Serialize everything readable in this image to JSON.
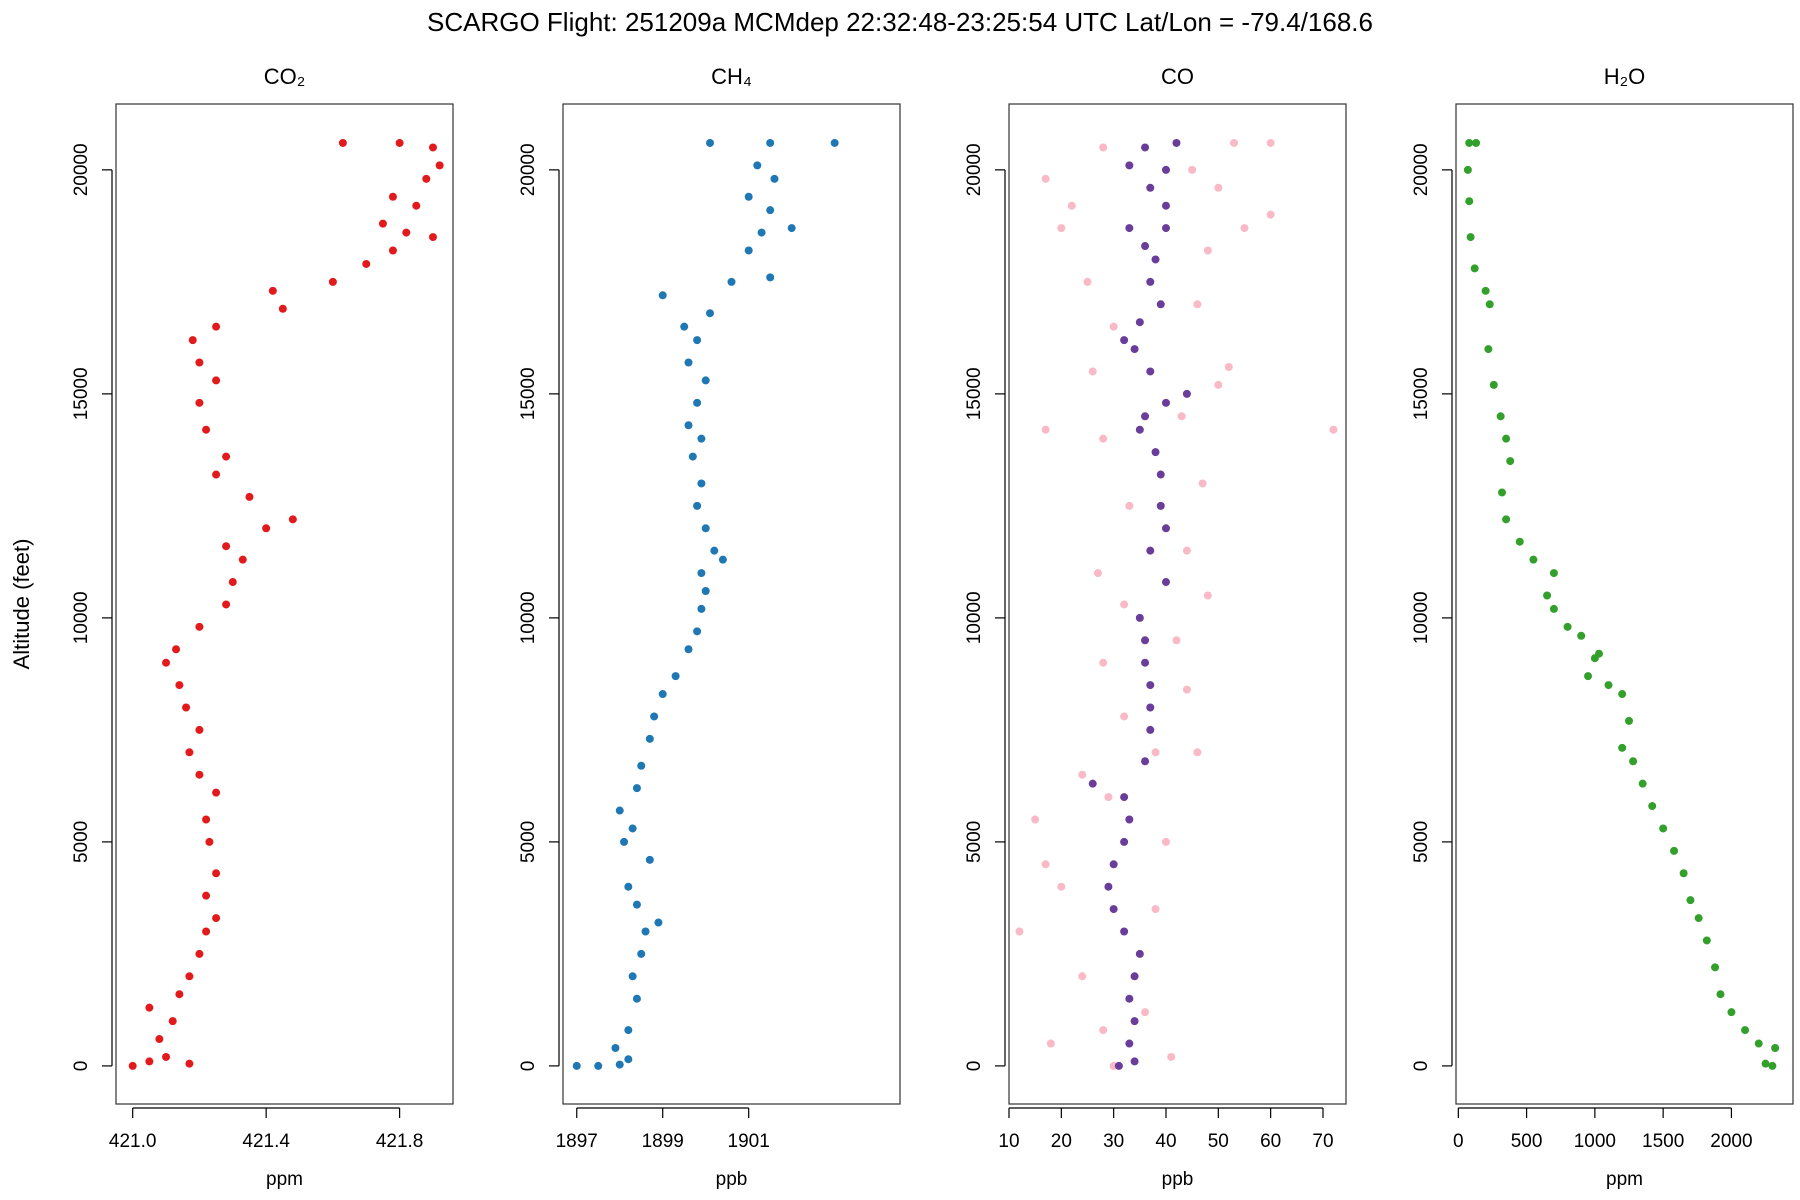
{
  "title": "SCARGO Flight: 251209a  MCMdep  22:32:48-23:25:54 UTC  Lat/Lon = -79.4/168.6",
  "chart_data": [
    {
      "type": "scatter",
      "title": "CO₂",
      "xlabel": "ppm",
      "ylabel": "Altitude (feet)",
      "xlim": [
        420.95,
        421.96
      ],
      "xticks": [
        {
          "value": 421,
          "label": "421.0"
        },
        421.4,
        421.8
      ],
      "ylim": [
        -850,
        21470
      ],
      "yticks": [
        0,
        5000,
        10000,
        15000,
        20000
      ],
      "series": [
        {
          "color": "#e31a1c",
          "x": [
            421.0,
            421.05,
            421.1,
            421.17,
            421.08,
            421.05,
            421.12,
            421.14,
            421.17,
            421.2,
            421.22,
            421.25,
            421.22,
            421.25,
            421.23,
            421.22,
            421.25,
            421.2,
            421.17,
            421.2,
            421.16,
            421.14,
            421.1,
            421.13,
            421.2,
            421.28,
            421.3,
            421.33,
            421.28,
            421.4,
            421.48,
            421.35,
            421.25,
            421.28,
            421.22,
            421.2,
            421.25,
            421.2,
            421.18,
            421.25,
            421.45,
            421.42,
            421.6,
            421.7,
            421.78,
            421.82,
            421.9,
            421.75,
            421.85,
            421.78,
            421.88,
            421.92,
            421.63,
            421.8,
            421.9
          ],
          "y": [
            0,
            100,
            200,
            50,
            600,
            1300,
            1000,
            1600,
            2000,
            2500,
            3000,
            3300,
            3800,
            4300,
            5000,
            5500,
            6100,
            6500,
            7000,
            7500,
            8000,
            8500,
            9000,
            9300,
            9800,
            10300,
            10800,
            11300,
            11600,
            12000,
            12200,
            12700,
            13200,
            13600,
            14200,
            14800,
            15300,
            15700,
            16200,
            16500,
            16900,
            17300,
            17500,
            17900,
            18200,
            18600,
            18500,
            18800,
            19200,
            19400,
            19800,
            20100,
            20600,
            20600,
            20500
          ]
        }
      ]
    },
    {
      "type": "scatter",
      "title": "CH₄",
      "xlabel": "ppb",
      "xlim": [
        1896.68,
        1904.52
      ],
      "xticks": [
        1897,
        1899,
        1901
      ],
      "ylim": [
        -850,
        21470
      ],
      "yticks": [
        0,
        5000,
        10000,
        15000,
        20000
      ],
      "series": [
        {
          "color": "#1f78b4",
          "x": [
            1897,
            1897.5,
            1898,
            1898.2,
            1897.9,
            1898.2,
            1898.4,
            1898.3,
            1898.5,
            1898.6,
            1898.9,
            1898.4,
            1898.2,
            1898.7,
            1898.1,
            1898.3,
            1898.0,
            1898.4,
            1898.5,
            1898.7,
            1898.8,
            1899,
            1899.3,
            1899.6,
            1899.8,
            1899.9,
            1900,
            1899.9,
            1900.2,
            1900.4,
            1900,
            1899.8,
            1899.9,
            1899.7,
            1899.9,
            1899.6,
            1899.8,
            1900,
            1899.6,
            1899.8,
            1899.5,
            1900.1,
            1899,
            1900.6,
            1901.5,
            1901.0,
            1901.3,
            1902.0,
            1901.5,
            1901.0,
            1901.6,
            1901.2,
            1900.1,
            1901.5,
            1903
          ],
          "y": [
            0,
            0,
            30,
            150,
            400,
            800,
            1500,
            2000,
            2500,
            3000,
            3200,
            3600,
            4000,
            4600,
            5000,
            5300,
            5700,
            6200,
            6700,
            7300,
            7800,
            8300,
            8700,
            9300,
            9700,
            10200,
            10600,
            11000,
            11500,
            11300,
            12000,
            12500,
            13000,
            13600,
            14000,
            14300,
            14800,
            15300,
            15700,
            16200,
            16500,
            16800,
            17200,
            17500,
            17600,
            18200,
            18600,
            18700,
            19100,
            19400,
            19800,
            20100,
            20600,
            20600,
            20600
          ]
        }
      ]
    },
    {
      "type": "scatter",
      "title": "CO",
      "xlabel": "ppb",
      "xlim": [
        10,
        74.4
      ],
      "xticks": [
        10,
        20,
        30,
        40,
        50,
        60,
        70
      ],
      "ylim": [
        -850,
        21470
      ],
      "yticks": [
        0,
        5000,
        10000,
        15000,
        20000
      ],
      "series": [
        {
          "color": "#f9b9c6",
          "x": [
            30,
            41,
            18,
            28,
            36,
            24,
            12,
            38,
            20,
            17,
            40,
            15,
            29,
            24,
            38,
            46,
            32,
            44,
            28,
            42,
            32,
            48,
            27,
            44,
            33,
            47,
            28,
            17,
            72,
            43,
            50,
            26,
            52,
            30,
            46,
            25,
            48,
            55,
            20,
            60,
            22,
            50,
            17,
            45,
            28,
            60,
            53
          ],
          "y": [
            0,
            200,
            500,
            800,
            1200,
            2000,
            3000,
            3500,
            4000,
            4500,
            5000,
            5500,
            6000,
            6500,
            7000,
            7000,
            7800,
            8400,
            9000,
            9500,
            10300,
            10500,
            11000,
            11500,
            12500,
            13000,
            14000,
            14200,
            14200,
            14500,
            15200,
            15500,
            15600,
            16500,
            17000,
            17500,
            18200,
            18700,
            18700,
            19000,
            19200,
            19600,
            19800,
            20000,
            20500,
            20600,
            20600
          ]
        },
        {
          "color": "#6a3d9a",
          "x": [
            31,
            34,
            33,
            34,
            33,
            34,
            35,
            32,
            30,
            29,
            30,
            32,
            33,
            32,
            26,
            36,
            37,
            37,
            37,
            36,
            36,
            35,
            40,
            37,
            40,
            39,
            39,
            38,
            35,
            36,
            40,
            44,
            37,
            34,
            32,
            35,
            39,
            37,
            38,
            36,
            40,
            33,
            40,
            37,
            40,
            33,
            36,
            42
          ],
          "y": [
            0,
            100,
            500,
            1000,
            1500,
            2000,
            2500,
            3000,
            3500,
            4000,
            4500,
            5000,
            5500,
            6000,
            6300,
            6800,
            7500,
            8000,
            8500,
            9000,
            9500,
            10000,
            10800,
            11500,
            12000,
            12500,
            13200,
            13700,
            14200,
            14500,
            14800,
            15000,
            15500,
            16000,
            16200,
            16600,
            17000,
            17500,
            18000,
            18300,
            18700,
            18700,
            19200,
            19600,
            20000,
            20100,
            20500,
            20600
          ]
        }
      ]
    },
    {
      "type": "scatter",
      "title": "H₂O",
      "xlabel": "ppm",
      "xlim": [
        -17,
        2451
      ],
      "xticks": [
        0,
        500,
        1000,
        1500,
        2000
      ],
      "ylim": [
        -850,
        21470
      ],
      "yticks": [
        0,
        5000,
        10000,
        15000,
        20000
      ],
      "series": [
        {
          "color": "#33a02c",
          "x": [
            2300,
            2250,
            2320,
            2200,
            2100,
            2000,
            1920,
            1880,
            1820,
            1760,
            1700,
            1650,
            1580,
            1500,
            1420,
            1350,
            1280,
            1200,
            1250,
            1200,
            1100,
            950,
            1000,
            1030,
            900,
            800,
            700,
            650,
            700,
            550,
            450,
            350,
            320,
            380,
            350,
            310,
            260,
            220,
            230,
            200,
            120,
            90,
            80,
            70,
            80,
            130
          ],
          "y": [
            0,
            50,
            400,
            500,
            800,
            1200,
            1600,
            2200,
            2800,
            3300,
            3700,
            4300,
            4800,
            5300,
            5800,
            6300,
            6800,
            7100,
            7700,
            8300,
            8500,
            8700,
            9100,
            9200,
            9600,
            9800,
            10200,
            10500,
            11000,
            11300,
            11700,
            12200,
            12800,
            13500,
            14000,
            14500,
            15200,
            16000,
            17000,
            17300,
            17800,
            18500,
            19300,
            20000,
            20600,
            20600
          ]
        }
      ]
    }
  ]
}
